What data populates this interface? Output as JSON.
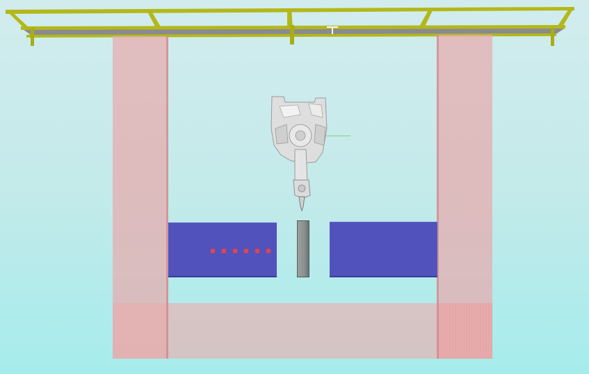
{
  "scene": {
    "background_top": "#d2ecee",
    "background_bottom": "#a6ecec"
  },
  "colors": {
    "gantry": "#b3b81a",
    "gantry_shadow": "#8e9410",
    "gantry_deck": "#8a8a90",
    "pillar": "#e8aaac",
    "conveyor": "#5252bd",
    "center_block": "#8a908e",
    "part_marker": "#e64444",
    "robot": "#dcdcdc",
    "axis_y": "#7ed67e"
  },
  "parts_on_left_conveyor": 6,
  "icons": {
    "tcp": "tcp-marker-icon"
  }
}
